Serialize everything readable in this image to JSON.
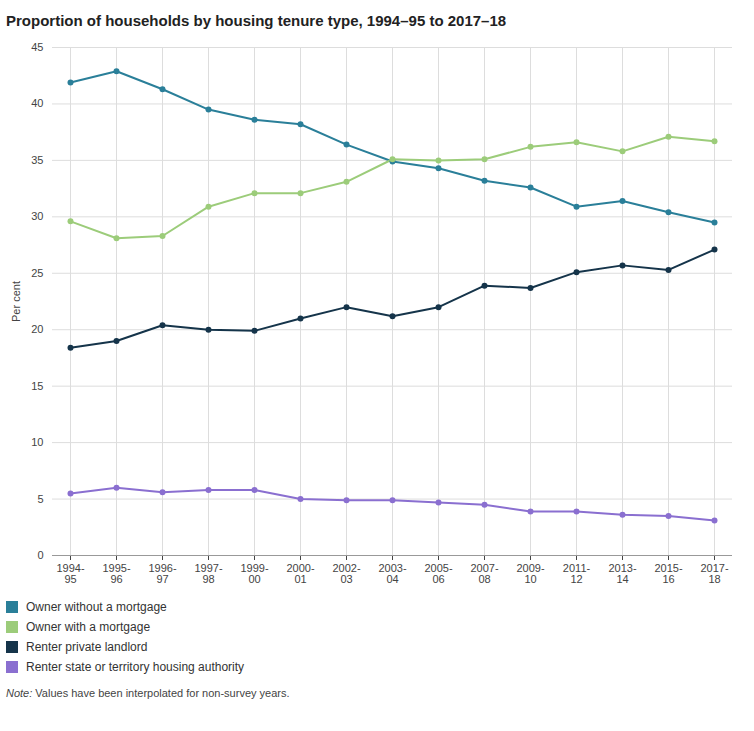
{
  "chart_data": {
    "type": "line",
    "title": "Proportion of households by housing tenure type, 1994–95 to 2017–18",
    "y_label": "Per cent",
    "categories": [
      "1994-95",
      "1995-96",
      "1996-97",
      "1997-98",
      "1999-00",
      "2000-01",
      "2002-03",
      "2003-04",
      "2005-06",
      "2007-08",
      "2009-10",
      "2011-12",
      "2013-14",
      "2015-16",
      "2017-18"
    ],
    "series": [
      {
        "name": "Owner without a mortgage",
        "color": "#2a7f99",
        "values": [
          41.9,
          42.9,
          41.3,
          39.5,
          38.6,
          38.2,
          36.4,
          34.9,
          34.3,
          33.2,
          32.6,
          30.9,
          31.4,
          30.4,
          29.5
        ]
      },
      {
        "name": "Owner with a mortgage",
        "color": "#9ccc7a",
        "values": [
          29.6,
          28.1,
          28.3,
          30.9,
          32.1,
          32.1,
          33.1,
          35.1,
          35.0,
          35.1,
          36.2,
          36.6,
          35.8,
          37.1,
          36.7
        ]
      },
      {
        "name": "Renter private landlord",
        "color": "#15344a",
        "values": [
          18.4,
          19.0,
          20.4,
          20.0,
          19.9,
          21.0,
          22.0,
          21.2,
          22.0,
          23.9,
          23.7,
          25.1,
          25.7,
          25.3,
          27.1
        ]
      },
      {
        "name": "Renter state or territory housing authority",
        "color": "#8a6fd0",
        "values": [
          5.5,
          6.0,
          5.6,
          5.8,
          5.8,
          5.0,
          4.9,
          4.9,
          4.7,
          4.5,
          3.9,
          3.9,
          3.6,
          3.5,
          3.1
        ]
      }
    ],
    "ylim": [
      0,
      45
    ],
    "yticks": [
      0,
      5,
      10,
      15,
      20,
      25,
      30,
      35,
      40,
      45
    ],
    "grid": true,
    "legend": "bottom",
    "marker": "circle",
    "note": "Note: Values have been interpolated for non-survey years."
  }
}
